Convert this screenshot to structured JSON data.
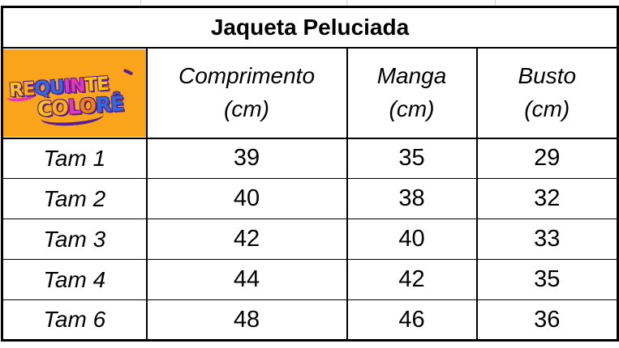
{
  "table": {
    "title": "Jaqueta Peluciada",
    "unit": "(cm)",
    "columns": [
      "Comprimento",
      "Manga",
      "Busto"
    ],
    "rows": [
      {
        "label": "Tam 1",
        "comprimento": "39",
        "manga": "35",
        "busto": "29"
      },
      {
        "label": "Tam 2",
        "comprimento": "40",
        "manga": "38",
        "busto": "32"
      },
      {
        "label": "Tam 3",
        "comprimento": "42",
        "manga": "40",
        "busto": "33"
      },
      {
        "label": "Tam 4",
        "comprimento": "44",
        "manga": "42",
        "busto": "35"
      },
      {
        "label": "Tam 6",
        "comprimento": "48",
        "manga": "46",
        "busto": "36"
      }
    ]
  },
  "logo": {
    "brand": "Requinte Colorê",
    "background_color": "#f9a41b",
    "outline_color": "#5b1e90",
    "line1": [
      {
        "ch": "R",
        "color": "#ffc60a"
      },
      {
        "ch": "E",
        "color": "#ffad0d"
      },
      {
        "ch": "Q",
        "color": "#2f6bde"
      },
      {
        "ch": "U",
        "color": "#2f6bde"
      },
      {
        "ch": "I",
        "color": "#e637b8"
      },
      {
        "ch": "N",
        "color": "#e637b8"
      },
      {
        "ch": "T",
        "color": "#ffc60a"
      },
      {
        "ch": "E",
        "color": "#ffc60a"
      }
    ],
    "line2": [
      {
        "ch": "C",
        "color": "#ffc60a"
      },
      {
        "ch": "O",
        "color": "#ffb00f"
      },
      {
        "ch": "L",
        "color": "#e637b8"
      },
      {
        "ch": "O",
        "color": "#f0830a"
      },
      {
        "ch": "R",
        "color": "#2f6bde"
      },
      {
        "ch": "Ê",
        "color": "#2f6bde"
      }
    ]
  },
  "colors": {
    "border": "#000000",
    "text": "#000000",
    "faint_gridline": "#cfcfcf"
  }
}
